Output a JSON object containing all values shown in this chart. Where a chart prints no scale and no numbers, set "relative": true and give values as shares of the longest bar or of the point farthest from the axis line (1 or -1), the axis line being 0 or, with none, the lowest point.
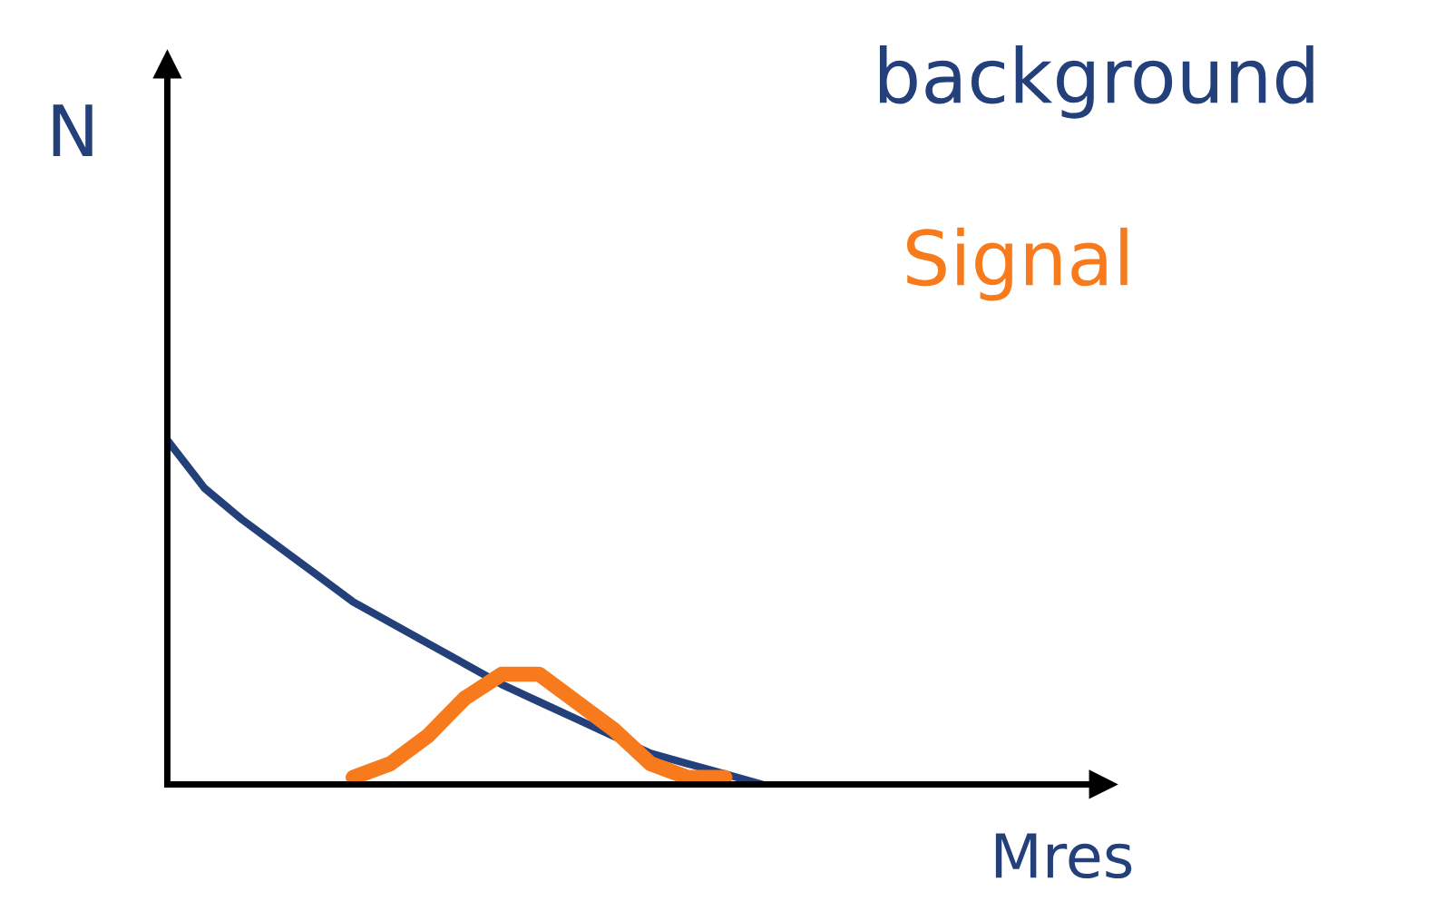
{
  "chart_data": {
    "type": "line",
    "relative": true,
    "xlabel": "Mres",
    "ylabel": "N",
    "legend": false,
    "marker": "none",
    "line_style": "solid",
    "categories": [
      null,
      null,
      null,
      null,
      null,
      null,
      null,
      null,
      null,
      null,
      null,
      null,
      null,
      null,
      null,
      null,
      null
    ],
    "series": [
      {
        "name": "background",
        "color": "#23407a",
        "values": [
          1,
          0.86,
          0.77,
          0.69,
          0.61,
          0.53,
          0.47,
          0.41,
          0.35,
          0.29,
          0.24,
          0.19,
          0.14,
          0.09,
          0.06,
          0.03,
          0
        ]
      },
      {
        "name": "Signal",
        "color": "#f77b1c",
        "values": [
          null,
          null,
          null,
          null,
          null,
          0.02,
          0.06,
          0.14,
          0.25,
          0.32,
          0.32,
          0.24,
          0.16,
          0.06,
          0.02,
          0.02,
          null
        ]
      }
    ]
  }
}
